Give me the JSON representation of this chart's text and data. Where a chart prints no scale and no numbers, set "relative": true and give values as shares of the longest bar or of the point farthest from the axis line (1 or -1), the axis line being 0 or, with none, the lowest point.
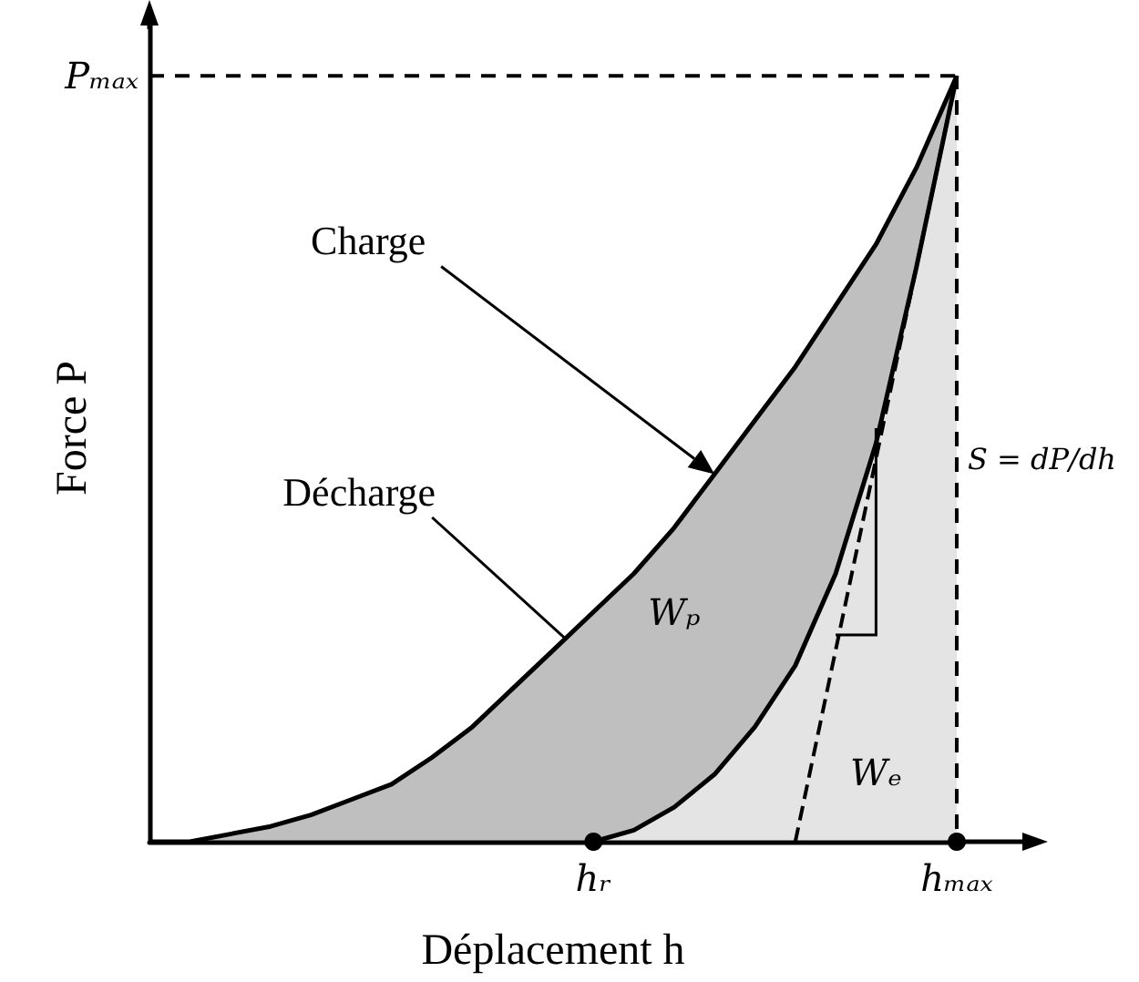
{
  "chart_data": {
    "type": "area",
    "relative": true,
    "xlabel": "Déplacement h",
    "ylabel": "Force P",
    "marker": "none",
    "categories": [
      null,
      null,
      null,
      null,
      null,
      null,
      null,
      null,
      null,
      null,
      null,
      "hᵣ",
      null,
      null,
      null,
      null,
      null,
      null,
      null,
      null,
      "hₘₐₓ"
    ],
    "series": [
      {
        "color": "#bfbfbf",
        "values": [
          0,
          0,
          0.01,
          0.02,
          0.035,
          0.055,
          0.075,
          0.11,
          0.15,
          0.2,
          0.25,
          0.3,
          0.35,
          0.41,
          0.48,
          0.55,
          0.62,
          0.7,
          0.78,
          0.88,
          1
        ]
      },
      {
        "color": "#e4e4e4",
        "values": [
          null,
          null,
          null,
          null,
          null,
          null,
          null,
          null,
          null,
          null,
          null,
          0,
          0.015,
          0.045,
          0.088,
          0.15,
          0.23,
          0.35,
          0.52,
          0.75,
          1
        ]
      },
      {
        "type": "scatter",
        "color": "#000000",
        "marker": "circle",
        "values": [
          null,
          null,
          null,
          null,
          null,
          null,
          null,
          null,
          null,
          null,
          null,
          0,
          null,
          null,
          null,
          null,
          null,
          null,
          null,
          null,
          0
        ]
      },
      {
        "type": "line",
        "color": "#000000",
        "line_style": "dashed",
        "values": [
          null,
          null,
          null,
          null,
          null,
          null,
          null,
          null,
          null,
          null,
          null,
          null,
          null,
          null,
          null,
          null,
          0,
          0.25,
          0.5,
          0.75,
          1
        ]
      }
    ],
    "ref_lines": [
      {
        "axis": "y",
        "value": 1,
        "label": "Pₘₐₓ",
        "line_style": "dashed"
      },
      {
        "axis": "x",
        "value": "hₘₐₓ",
        "line_style": "dashed"
      }
    ],
    "annotations": [
      "Charge",
      "Décharge",
      "Wₚ",
      "Wₑ",
      "S = dP/dh"
    ]
  }
}
